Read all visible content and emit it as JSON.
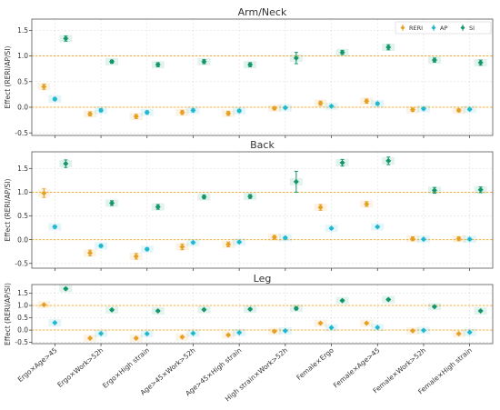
{
  "chart_data": {
    "type": "scatter",
    "categories": [
      "Ergo×Age>45",
      "Ergo×Work>52h",
      "Ergo×High strain",
      "Age>45×Work>52h",
      "Age>45×High strain",
      "High strain×Work>52h",
      "Female×Ergo",
      "Female×Age>45",
      "Female×Work>52h",
      "Female×High strain"
    ],
    "reference_lines": [
      0,
      1
    ],
    "legend": {
      "position": "top-right",
      "entries": [
        "RERI",
        "AP",
        "SI"
      ]
    },
    "colors": {
      "RERI": "#e6a024",
      "AP": "#1fb8d0",
      "SI": "#13966a",
      "ref_line": "#f5a623",
      "grid": "#e0e0e0",
      "frame": "#555555"
    },
    "panels": [
      {
        "title": "Arm/Neck",
        "ylabel": "Effect (RERI/AP/SI)",
        "ylim": [
          -0.55,
          1.72
        ],
        "yticks": [
          "-0.5",
          "0.0",
          "0.5",
          "1.0",
          "1.5"
        ],
        "ytick_values": [
          -0.5,
          0,
          0.5,
          1.0,
          1.5
        ],
        "series": [
          {
            "name": "RERI",
            "values": [
              0.4,
              -0.13,
              -0.18,
              -0.1,
              -0.12,
              -0.02,
              0.08,
              0.12,
              -0.05,
              -0.06
            ],
            "err": [
              0.05,
              0.04,
              0.04,
              0.04,
              0.04,
              0.03,
              0.04,
              0.04,
              0.03,
              0.03
            ]
          },
          {
            "name": "AP",
            "values": [
              0.16,
              -0.06,
              -0.1,
              -0.06,
              -0.07,
              -0.01,
              0.02,
              0.07,
              -0.03,
              -0.04
            ],
            "err": [
              0.03,
              0.03,
              0.03,
              0.03,
              0.03,
              0.02,
              0.02,
              0.03,
              0.02,
              0.02
            ]
          },
          {
            "name": "SI",
            "values": [
              1.34,
              0.89,
              0.83,
              0.89,
              0.83,
              0.96,
              1.07,
              1.17,
              0.92,
              0.87
            ],
            "err": [
              0.05,
              0.03,
              0.04,
              0.04,
              0.04,
              0.11,
              0.04,
              0.05,
              0.04,
              0.05
            ]
          }
        ]
      },
      {
        "title": "Back",
        "ylabel": "Effect (RERI/AP/SI)",
        "ylim": [
          -0.6,
          1.85
        ],
        "yticks": [
          "-0.5",
          "0.0",
          "0.5",
          "1.0",
          "1.5"
        ],
        "ytick_values": [
          -0.5,
          0,
          0.5,
          1.0,
          1.5
        ],
        "series": [
          {
            "name": "RERI",
            "values": [
              0.98,
              -0.28,
              -0.35,
              -0.15,
              -0.1,
              0.05,
              0.68,
              0.75,
              0.02,
              0.02
            ],
            "err": [
              0.09,
              0.06,
              0.06,
              0.06,
              0.05,
              0.04,
              0.06,
              0.05,
              0.04,
              0.04
            ]
          },
          {
            "name": "AP",
            "values": [
              0.27,
              -0.13,
              -0.2,
              -0.06,
              -0.05,
              0.04,
              0.24,
              0.27,
              0.01,
              0.01
            ],
            "err": [
              0.03,
              0.03,
              0.03,
              0.02,
              0.02,
              0.02,
              0.02,
              0.02,
              0.02,
              0.02
            ]
          },
          {
            "name": "SI",
            "values": [
              1.6,
              0.77,
              0.69,
              0.9,
              0.91,
              1.22,
              1.62,
              1.66,
              1.04,
              1.05
            ],
            "err": [
              0.08,
              0.05,
              0.05,
              0.04,
              0.04,
              0.22,
              0.07,
              0.08,
              0.06,
              0.06
            ]
          }
        ]
      },
      {
        "title": "Leg",
        "ylabel": "Effect (RERI/AP/SI)",
        "ylim": [
          -0.55,
          1.85
        ],
        "yticks": [
          "-0.5",
          "0.0",
          "0.5",
          "1.0",
          "1.5"
        ],
        "ytick_values": [
          -0.5,
          0,
          0.5,
          1.0,
          1.5
        ],
        "series": [
          {
            "name": "RERI",
            "values": [
              1.03,
              -0.33,
              -0.33,
              -0.28,
              -0.2,
              -0.05,
              0.28,
              0.28,
              -0.03,
              -0.15
            ],
            "err": [
              0.04,
              0.04,
              0.04,
              0.03,
              0.03,
              0.03,
              0.03,
              0.03,
              0.03,
              0.03
            ]
          },
          {
            "name": "AP",
            "values": [
              0.3,
              -0.14,
              -0.15,
              -0.13,
              -0.1,
              -0.03,
              0.1,
              0.11,
              -0.01,
              -0.09
            ],
            "err": [
              0.02,
              0.02,
              0.02,
              0.02,
              0.02,
              0.02,
              0.02,
              0.02,
              0.02,
              0.02
            ]
          },
          {
            "name": "SI",
            "values": [
              1.68,
              0.82,
              0.78,
              0.83,
              0.85,
              0.88,
              1.2,
              1.24,
              0.95,
              0.78
            ],
            "err": [
              0.04,
              0.03,
              0.03,
              0.03,
              0.03,
              0.06,
              0.04,
              0.04,
              0.03,
              0.03
            ]
          }
        ]
      }
    ]
  }
}
